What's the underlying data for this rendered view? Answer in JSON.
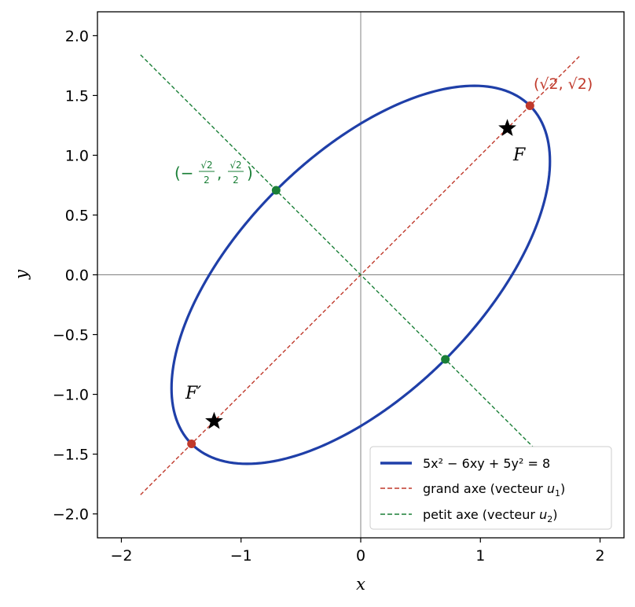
{
  "chart_data": {
    "type": "scatter",
    "xlabel": "x",
    "ylabel": "y",
    "xlim": [
      -2.2,
      2.2
    ],
    "ylim": [
      -2.2,
      2.2
    ],
    "x_ticks": [
      -2,
      -1,
      0,
      1,
      2
    ],
    "x_tick_labels": [
      "−2",
      "−1",
      "0",
      "1",
      "2"
    ],
    "y_ticks": [
      2.0,
      1.5,
      1.0,
      0.5,
      0.0,
      -0.5,
      -1.0,
      -1.5,
      -2.0
    ],
    "y_tick_labels": [
      "2.0",
      "1.5",
      "1.0",
      "0.5",
      "0.0",
      "−0.5",
      "−1.0",
      "−1.5",
      "−2.0"
    ],
    "grid": false,
    "legend_position": "bottom-right",
    "series": [
      {
        "name": "5x² − 6xy + 5y² = 8",
        "kind": "ellipse",
        "equation": {
          "a": 5,
          "b": -6,
          "c": 5,
          "rhs": 8
        },
        "color": "#1f3fa8"
      },
      {
        "name": "grand axe (vecteur u₁)",
        "kind": "dashed-line",
        "from": [
          -1.84,
          -1.84
        ],
        "to": [
          1.84,
          1.84
        ],
        "color": "#c0392b"
      },
      {
        "name": "petit axe (vecteur u₂)",
        "kind": "dashed-line",
        "from": [
          -1.84,
          1.84
        ],
        "to": [
          1.44,
          -1.44
        ],
        "color": "#1a7f37"
      }
    ],
    "vertices_major": [
      [
        1.414,
        1.414
      ],
      [
        -1.414,
        -1.414
      ]
    ],
    "vertices_minor": [
      [
        -0.707,
        0.707
      ],
      [
        0.707,
        -0.707
      ]
    ],
    "foci": [
      [
        1.225,
        1.225
      ],
      [
        -1.225,
        -1.225
      ]
    ],
    "annotations": {
      "major_vertex": "(√2, √2)",
      "minor_vertex_num": "√2",
      "minor_vertex_den": "2",
      "focus_1": "F",
      "focus_2": "F′"
    },
    "colors": {
      "ellipse": "#1f3fa8",
      "major": "#c0392b",
      "minor": "#1a7f37",
      "ref_axes": "#808080"
    }
  },
  "legend": {
    "ellipse_label": "5x² − 6xy + 5y² = 8",
    "major_label_prefix": "grand axe (vecteur ",
    "major_var": "u",
    "major_sub": "1",
    "minor_label_prefix": "petit axe (vecteur ",
    "minor_var": "u",
    "minor_sub": "2",
    "close_paren": ")"
  }
}
